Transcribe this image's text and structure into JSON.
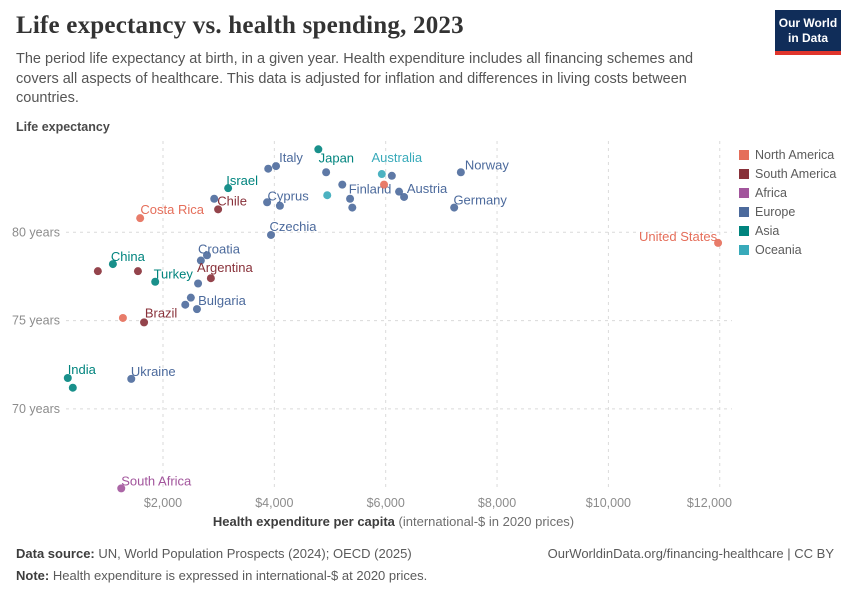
{
  "header": {
    "title": "Life expectancy vs. health spending, 2023",
    "subtitle": "The period life expectancy at birth, in a given year. Health expenditure includes all financing schemes and covers all aspects of healthcare. This data is adjusted for inflation and differences in living costs between countries.",
    "logo_line1": "Our World",
    "logo_line2": "in Data"
  },
  "axes": {
    "y_axis_label": "Life expectancy",
    "x_axis_title_bold": "Health expenditure per capita",
    "x_axis_title_rest": "(international-$ in 2020 prices)"
  },
  "legend": {
    "items": [
      {
        "label": "North America",
        "color": "#E56E5A"
      },
      {
        "label": "South America",
        "color": "#883039"
      },
      {
        "label": "Africa",
        "color": "#A2559C"
      },
      {
        "label": "Europe",
        "color": "#4C6A9C"
      },
      {
        "label": "Asia",
        "color": "#00847E"
      },
      {
        "label": "Oceania",
        "color": "#38AABA"
      }
    ]
  },
  "footer": {
    "data_source_label": "Data source:",
    "data_source_text": "UN, World Population Prospects (2024); OECD (2025)",
    "link_text": "OurWorldinData.org/financing-healthcare | CC BY",
    "note_label": "Note:",
    "note_text": "Health expenditure is expressed in international-$ at 2020 prices."
  },
  "chart_data": {
    "type": "scatter",
    "title": "Life expectancy vs. health spending, 2023",
    "xlabel": "Health expenditure per capita (international-$ in 2020 prices)",
    "ylabel": "Life expectancy",
    "xlim": [
      0,
      12500
    ],
    "ylim": [
      65,
      85.5
    ],
    "grid": true,
    "legend_position": "right",
    "x_ticks": [
      {
        "value": 2000,
        "label": "$2,000"
      },
      {
        "value": 4000,
        "label": "$4,000"
      },
      {
        "value": 6000,
        "label": "$6,000"
      },
      {
        "value": 8000,
        "label": "$8,000"
      },
      {
        "value": 10000,
        "label": "$10,000"
      },
      {
        "value": 12000,
        "label": "$12,000"
      }
    ],
    "y_ticks": [
      {
        "value": 80,
        "label": "80 years"
      },
      {
        "value": 75,
        "label": "75 years"
      },
      {
        "value": 70,
        "label": "70 years"
      }
    ],
    "series_colors": {
      "North America": "#E56E5A",
      "South America": "#883039",
      "Africa": "#A2559C",
      "Europe": "#4C6A9C",
      "Asia": "#00847E",
      "Oceania": "#38AABA"
    },
    "points": [
      {
        "label": "Costa Rica",
        "continent": "North America",
        "health_exp_usd": 1590,
        "life_expectancy": 80.8
      },
      {
        "label": "China",
        "continent": "Asia",
        "health_exp_usd": 1100,
        "life_expectancy": 78.2
      },
      {
        "label": "",
        "continent": "South America",
        "health_exp_usd": 830,
        "life_expectancy": 77.8
      },
      {
        "label": "",
        "continent": "South America",
        "health_exp_usd": 1550,
        "life_expectancy": 77.8
      },
      {
        "label": "Turkey",
        "continent": "Asia",
        "health_exp_usd": 1860,
        "life_expectancy": 77.2
      },
      {
        "label": "",
        "continent": "Europe",
        "health_exp_usd": 2680,
        "life_expectancy": 78.4
      },
      {
        "label": "Croatia",
        "continent": "Europe",
        "health_exp_usd": 2790,
        "life_expectancy": 78.7
      },
      {
        "label": "Argentina",
        "continent": "South America",
        "health_exp_usd": 2860,
        "life_expectancy": 77.4
      },
      {
        "label": "",
        "continent": "Europe",
        "health_exp_usd": 2630,
        "life_expectancy": 77.1
      },
      {
        "label": "",
        "continent": "Europe",
        "health_exp_usd": 2400,
        "life_expectancy": 75.9
      },
      {
        "label": "",
        "continent": "Europe",
        "health_exp_usd": 2500,
        "life_expectancy": 76.3
      },
      {
        "label": "Bulgaria",
        "continent": "Europe",
        "health_exp_usd": 2610,
        "life_expectancy": 75.65
      },
      {
        "label": "",
        "continent": "North America",
        "health_exp_usd": 1280,
        "life_expectancy": 75.15
      },
      {
        "label": "Brazil",
        "continent": "South America",
        "health_exp_usd": 1660,
        "life_expectancy": 74.9
      },
      {
        "label": "India",
        "continent": "Asia",
        "health_exp_usd": 290,
        "life_expectancy": 71.75
      },
      {
        "label": "",
        "continent": "Asia",
        "health_exp_usd": 380,
        "life_expectancy": 71.2
      },
      {
        "label": "Ukraine",
        "continent": "Europe",
        "health_exp_usd": 1430,
        "life_expectancy": 71.7
      },
      {
        "label": "South Africa",
        "continent": "Africa",
        "health_exp_usd": 1250,
        "life_expectancy": 65.5
      },
      {
        "label": "Israel",
        "continent": "Asia",
        "health_exp_usd": 3170,
        "life_expectancy": 82.5
      },
      {
        "label": "",
        "continent": "Europe",
        "health_exp_usd": 2920,
        "life_expectancy": 81.9
      },
      {
        "label": "Chile",
        "continent": "South America",
        "health_exp_usd": 2990,
        "life_expectancy": 81.3
      },
      {
        "label": "Cyprus",
        "continent": "Europe",
        "health_exp_usd": 3870,
        "life_expectancy": 81.7
      },
      {
        "label": "",
        "continent": "Europe",
        "health_exp_usd": 4100,
        "life_expectancy": 81.5
      },
      {
        "label": "Czechia",
        "continent": "Europe",
        "health_exp_usd": 3940,
        "life_expectancy": 79.85
      },
      {
        "label": "",
        "continent": "Europe",
        "health_exp_usd": 3890,
        "life_expectancy": 83.6
      },
      {
        "label": "Italy",
        "continent": "Europe",
        "health_exp_usd": 4030,
        "life_expectancy": 83.75
      },
      {
        "label": "Japan",
        "continent": "Asia",
        "health_exp_usd": 4790,
        "life_expectancy": 84.7
      },
      {
        "label": "",
        "continent": "Europe",
        "health_exp_usd": 4930,
        "life_expectancy": 83.4
      },
      {
        "label": "",
        "continent": "Europe",
        "health_exp_usd": 5220,
        "life_expectancy": 82.7
      },
      {
        "label": "",
        "continent": "Oceania",
        "health_exp_usd": 4950,
        "life_expectancy": 82.1
      },
      {
        "label": "Finland",
        "continent": "Europe",
        "health_exp_usd": 5360,
        "life_expectancy": 81.9
      },
      {
        "label": "",
        "continent": "Europe",
        "health_exp_usd": 5400,
        "life_expectancy": 81.4
      },
      {
        "label": "Australia",
        "continent": "Oceania",
        "health_exp_usd": 5930,
        "life_expectancy": 83.3
      },
      {
        "label": "",
        "continent": "Europe",
        "health_exp_usd": 6110,
        "life_expectancy": 83.2
      },
      {
        "label": "",
        "continent": "North America",
        "health_exp_usd": 5970,
        "life_expectancy": 82.7
      },
      {
        "label": "",
        "continent": "Europe",
        "health_exp_usd": 6240,
        "life_expectancy": 82.3
      },
      {
        "label": "Austria",
        "continent": "Europe",
        "health_exp_usd": 6330,
        "life_expectancy": 82.0
      },
      {
        "label": "Norway",
        "continent": "Europe",
        "health_exp_usd": 7350,
        "life_expectancy": 83.4
      },
      {
        "label": "Germany",
        "continent": "Europe",
        "health_exp_usd": 7230,
        "life_expectancy": 81.4
      },
      {
        "label": "United States",
        "continent": "North America",
        "health_exp_usd": 11970,
        "life_expectancy": 79.4
      }
    ]
  }
}
